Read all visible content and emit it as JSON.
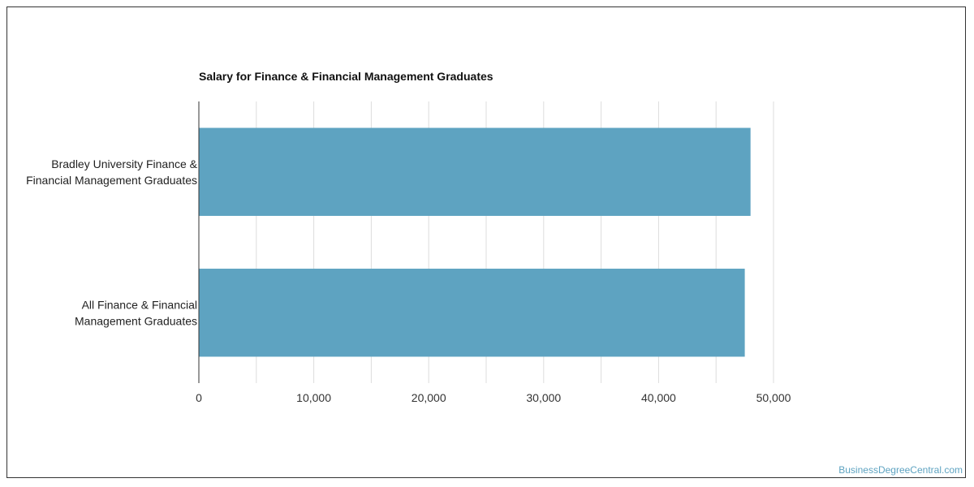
{
  "chart_data": {
    "type": "bar",
    "orientation": "horizontal",
    "title": "Salary for Finance & Financial Management Graduates",
    "categories": [
      [
        "Bradley University Finance &",
        "Financial Management Graduates"
      ],
      [
        "All Finance & Financial",
        "Management Graduates"
      ]
    ],
    "values": [
      48000,
      47500
    ],
    "xlim": [
      0,
      50000
    ],
    "xticks": [
      0,
      10000,
      20000,
      30000,
      40000,
      50000
    ],
    "xtick_labels": [
      "0",
      "10,000",
      "20,000",
      "30,000",
      "40,000",
      "50,000"
    ],
    "grid": true,
    "bar_color": "#5ea3c1",
    "xlabel": "",
    "ylabel": ""
  },
  "watermark": "BusinessDegreeCentral.com"
}
